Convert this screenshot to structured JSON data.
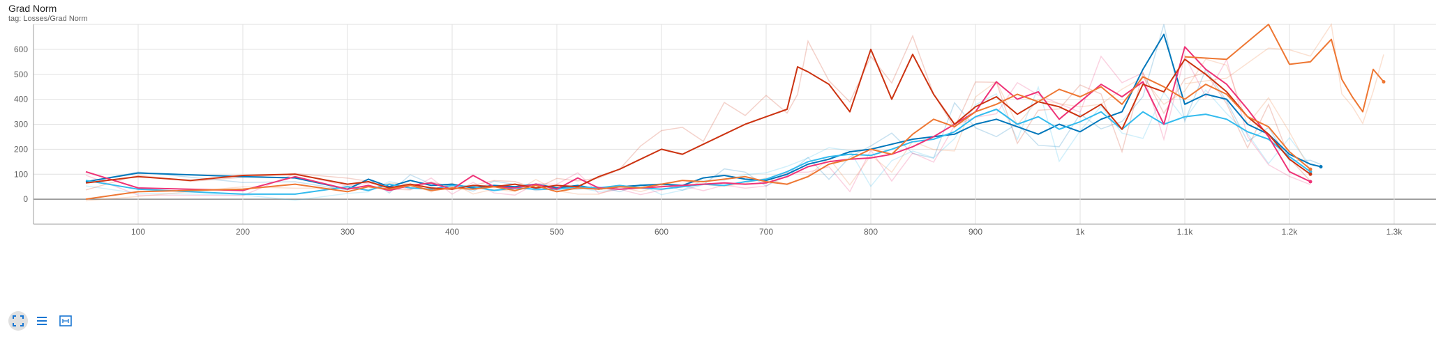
{
  "card": {
    "title": "Grad Norm",
    "tag": "tag: Losses/Grad Norm"
  },
  "toolbar": {
    "icons": [
      "fullscreen-icon",
      "toggle-log-list-icon",
      "fit-domain-icon"
    ]
  },
  "colors": {
    "series_palette": [
      "#0077bb",
      "#33bbee",
      "#ee3377",
      "#cc3311",
      "#ee7733",
      "#ee7733"
    ],
    "grid": "#e0e0e0",
    "axis": "#9e9e9e"
  },
  "chart_data": {
    "type": "line",
    "title": "Grad Norm",
    "xlabel": "",
    "ylabel": "",
    "xlim": [
      0,
      1340
    ],
    "ylim": [
      -100,
      700
    ],
    "x_ticks": [
      100,
      200,
      300,
      400,
      500,
      600,
      700,
      800,
      900,
      1000,
      1100,
      1200,
      1300
    ],
    "x_tick_labels": [
      "100",
      "200",
      "300",
      "400",
      "500",
      "600",
      "700",
      "800",
      "900",
      "1k",
      "1.1k",
      "1.2k",
      "1.3k"
    ],
    "y_ticks": [
      0,
      100,
      200,
      300,
      400,
      500,
      600
    ],
    "y_tick_labels": [
      "0",
      "100",
      "200",
      "300",
      "400",
      "500",
      "600"
    ],
    "grid": true,
    "legend": "none",
    "series": [
      {
        "color": "#0077bb",
        "x": [
          50,
          100,
          200,
          250,
          300,
          320,
          340,
          360,
          380,
          400,
          420,
          440,
          460,
          480,
          500,
          520,
          540,
          560,
          580,
          600,
          620,
          640,
          660,
          680,
          700,
          720,
          740,
          760,
          780,
          800,
          820,
          840,
          860,
          880,
          900,
          920,
          940,
          960,
          980,
          1000,
          1020,
          1040,
          1060,
          1080,
          1100,
          1120,
          1140,
          1160,
          1180,
          1200,
          1220,
          1230
        ],
        "y": [
          70,
          105,
          90,
          85,
          40,
          80,
          50,
          75,
          55,
          60,
          45,
          55,
          50,
          60,
          45,
          55,
          40,
          50,
          55,
          60,
          55,
          85,
          95,
          80,
          75,
          100,
          140,
          160,
          190,
          200,
          220,
          240,
          250,
          260,
          300,
          320,
          290,
          260,
          300,
          270,
          320,
          350,
          520,
          660,
          380,
          420,
          400,
          300,
          260,
          180,
          140,
          130
        ]
      },
      {
        "color": "#33bbee",
        "x": [
          50,
          100,
          200,
          250,
          300,
          320,
          340,
          360,
          380,
          400,
          420,
          440,
          460,
          480,
          500,
          520,
          540,
          560,
          580,
          600,
          620,
          640,
          660,
          680,
          700,
          720,
          740,
          760,
          780,
          800,
          820,
          840,
          860,
          880,
          900,
          920,
          940,
          960,
          980,
          1000,
          1020,
          1040,
          1060,
          1080,
          1100,
          1120,
          1140,
          1160,
          1180,
          1200,
          1220
        ],
        "y": [
          75,
          40,
          20,
          20,
          50,
          35,
          60,
          45,
          40,
          55,
          50,
          35,
          45,
          40,
          40,
          50,
          45,
          55,
          45,
          40,
          50,
          60,
          55,
          70,
          80,
          110,
          150,
          170,
          180,
          175,
          200,
          230,
          240,
          270,
          330,
          360,
          300,
          330,
          280,
          310,
          350,
          280,
          350,
          300,
          330,
          340,
          320,
          270,
          240,
          170,
          110
        ]
      },
      {
        "color": "#ee3377",
        "x": [
          50,
          100,
          200,
          250,
          300,
          320,
          340,
          360,
          380,
          400,
          420,
          440,
          460,
          480,
          500,
          520,
          540,
          560,
          580,
          600,
          620,
          640,
          660,
          680,
          700,
          720,
          740,
          760,
          780,
          800,
          820,
          840,
          860,
          880,
          900,
          920,
          940,
          960,
          980,
          1000,
          1020,
          1040,
          1060,
          1080,
          1100,
          1120,
          1140,
          1160,
          1180,
          1200,
          1220
        ],
        "y": [
          110,
          45,
          35,
          90,
          40,
          55,
          35,
          55,
          65,
          40,
          95,
          50,
          45,
          60,
          40,
          85,
          45,
          40,
          45,
          50,
          55,
          60,
          65,
          60,
          65,
          90,
          130,
          150,
          160,
          165,
          180,
          210,
          250,
          300,
          350,
          470,
          400,
          430,
          320,
          390,
          460,
          410,
          470,
          300,
          610,
          520,
          460,
          360,
          250,
          110,
          70
        ]
      },
      {
        "color": "#cc3311",
        "x": [
          50,
          100,
          150,
          200,
          250,
          300,
          320,
          340,
          360,
          380,
          400,
          420,
          440,
          460,
          480,
          500,
          520,
          540,
          560,
          580,
          600,
          620,
          640,
          660,
          680,
          700,
          720,
          730,
          740,
          760,
          780,
          800,
          820,
          840,
          860,
          880,
          900,
          920,
          940,
          960,
          980,
          1000,
          1020,
          1040,
          1060,
          1080,
          1100,
          1120,
          1140,
          1160,
          1180,
          1200,
          1220
        ],
        "y": [
          65,
          90,
          75,
          95,
          100,
          60,
          70,
          45,
          60,
          45,
          40,
          55,
          50,
          60,
          45,
          55,
          50,
          90,
          120,
          160,
          200,
          180,
          220,
          260,
          300,
          330,
          360,
          530,
          510,
          460,
          350,
          600,
          400,
          580,
          420,
          300,
          370,
          410,
          340,
          390,
          370,
          330,
          380,
          280,
          460,
          430,
          560,
          500,
          430,
          330,
          260,
          160,
          100
        ]
      },
      {
        "color": "#ee7733",
        "x": [
          50,
          100,
          200,
          250,
          300,
          320,
          340,
          360,
          380,
          400,
          420,
          440,
          460,
          480,
          500,
          520,
          540,
          560,
          580,
          600,
          620,
          640,
          660,
          680,
          700,
          720,
          740,
          760,
          780,
          800,
          820,
          840,
          860,
          880,
          900,
          920,
          940,
          960,
          980,
          1000,
          1020,
          1040,
          1060,
          1080,
          1100,
          1120,
          1140,
          1160,
          1180,
          1200,
          1220
        ],
        "y": [
          0,
          30,
          40,
          60,
          30,
          50,
          40,
          55,
          35,
          45,
          40,
          50,
          35,
          55,
          30,
          45,
          40,
          50,
          45,
          60,
          75,
          70,
          80,
          90,
          70,
          60,
          90,
          140,
          160,
          200,
          180,
          260,
          320,
          290,
          350,
          380,
          420,
          390,
          440,
          410,
          450,
          380,
          490,
          450,
          400,
          460,
          420,
          330,
          290,
          190,
          120
        ]
      },
      {
        "color": "#ee7733",
        "x": [
          1100,
          1140,
          1180,
          1200,
          1220,
          1240,
          1250,
          1260,
          1270,
          1280,
          1290
        ],
        "y": [
          570,
          560,
          700,
          540,
          550,
          640,
          480,
          410,
          350,
          520,
          470
        ]
      }
    ]
  }
}
